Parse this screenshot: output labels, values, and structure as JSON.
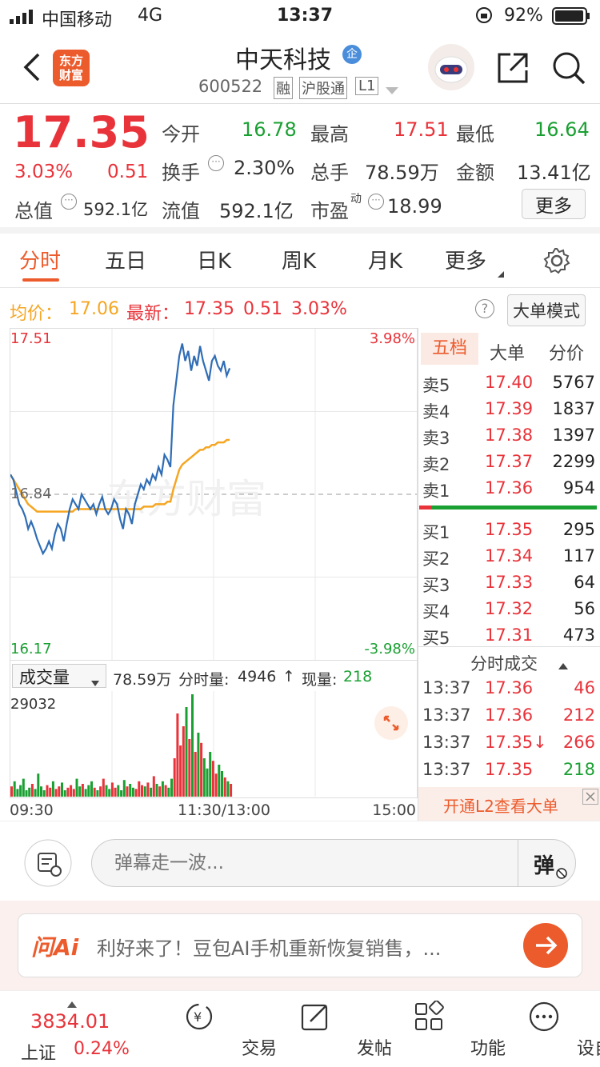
{
  "status": {
    "carrier": "中国移动",
    "network": "4G",
    "time": "13:37",
    "battery": "92%"
  },
  "header": {
    "title": "中天科技",
    "code": "600522",
    "tags": [
      "融",
      "沪股通",
      "L1"
    ],
    "logo_line1": "东方",
    "logo_line2": "财富",
    "badge": "企"
  },
  "quote": {
    "price": "17.35",
    "pct": "3.03%",
    "chg": "0.51",
    "open_label": "今开",
    "open": "16.78",
    "high_label": "最高",
    "high": "17.51",
    "low_label": "最低",
    "low": "16.64",
    "turnover_label": "换手",
    "turnover": "2.30%",
    "volume_label": "总手",
    "volume": "78.59万",
    "amount_label": "金额",
    "amount": "13.41亿",
    "mcap_label": "总值",
    "mcap": "592.1亿",
    "float_label": "流值",
    "float": "592.1亿",
    "pe_label": "市盈",
    "pe_sup": "动",
    "pe": "18.99",
    "more_label": "更多"
  },
  "tabs": [
    "分时",
    "五日",
    "日K",
    "周K",
    "月K",
    "更多"
  ],
  "pricebar": {
    "avg_label": "均价：",
    "avg": "17.06",
    "latest_label": "最新：",
    "latest": "17.35",
    "chg": "0.51",
    "pct": "3.03%",
    "mode_label": "大单模式",
    "help": "?"
  },
  "chart_data": {
    "type": "line",
    "x_labels": [
      "09:30",
      "11:30/13:00",
      "15:00"
    ],
    "ylim": [
      16.17,
      17.51
    ],
    "y_ticks": {
      "top": "17.51",
      "mid": "16.84",
      "bottom": "16.17"
    },
    "pct_ticks": {
      "top": "3.98%",
      "bottom": "-3.98%"
    },
    "watermark": "东方财富",
    "series": [
      {
        "values": [
          16.92,
          16.9,
          16.85,
          16.8,
          16.78,
          16.75,
          16.7,
          16.73,
          16.7,
          16.66,
          16.63,
          16.6,
          16.62,
          16.65,
          16.62,
          16.68,
          16.72,
          16.7,
          16.65,
          16.72,
          16.78,
          16.82,
          16.8,
          16.78,
          16.84,
          16.82,
          16.8,
          16.78,
          16.8,
          16.76,
          16.8,
          16.83,
          16.78,
          16.76,
          16.78,
          16.82,
          16.8,
          16.74,
          16.7,
          16.78,
          16.76,
          16.72,
          16.8,
          16.84,
          16.88,
          16.86,
          16.9,
          16.88,
          16.92,
          16.9,
          16.95,
          16.92,
          17.0,
          16.98,
          16.95,
          17.2,
          17.3,
          17.4,
          17.45,
          17.38,
          17.42,
          17.34,
          17.4,
          17.36,
          17.44,
          17.38,
          17.34,
          17.3,
          17.38,
          17.4,
          17.36,
          17.34,
          17.38,
          17.32,
          17.35
        ]
      },
      {
        "values": [
          16.92,
          16.9,
          16.88,
          16.86,
          16.84,
          16.82,
          16.8,
          16.79,
          16.78,
          16.77,
          16.77,
          16.77,
          16.77,
          16.77,
          16.77,
          16.77,
          16.77,
          16.77,
          16.77,
          16.77,
          16.77,
          16.77,
          16.78,
          16.78,
          16.78,
          16.78,
          16.78,
          16.78,
          16.78,
          16.78,
          16.78,
          16.78,
          16.78,
          16.78,
          16.78,
          16.78,
          16.78,
          16.78,
          16.78,
          16.78,
          16.78,
          16.78,
          16.78,
          16.78,
          16.78,
          16.79,
          16.79,
          16.79,
          16.79,
          16.8,
          16.8,
          16.8,
          16.8,
          16.81,
          16.81,
          16.86,
          16.9,
          16.94,
          16.96,
          16.97,
          16.98,
          16.99,
          17.0,
          17.01,
          17.02,
          17.02,
          17.03,
          17.03,
          17.04,
          17.04,
          17.05,
          17.05,
          17.05,
          17.06,
          17.06
        ]
      }
    ],
    "volume": {
      "max_label": "29032",
      "values": [
        8,
        12,
        6,
        9,
        14,
        5,
        7,
        10,
        6,
        18,
        8,
        5,
        9,
        7,
        12,
        6,
        8,
        11,
        5,
        7,
        9,
        6,
        14,
        8,
        10,
        6,
        9,
        12,
        7,
        5,
        8,
        14,
        9,
        6,
        11,
        7,
        9,
        5,
        13,
        8,
        10,
        7,
        6,
        12,
        9,
        8,
        11,
        7,
        16,
        10,
        8,
        12,
        9,
        7,
        14,
        30,
        65,
        40,
        55,
        70,
        45,
        80,
        35,
        50,
        42,
        30,
        22,
        35,
        28,
        18,
        25,
        20,
        15,
        12,
        10
      ]
    }
  },
  "volbar": {
    "select": "成交量",
    "total": "78.59万",
    "minute_label": "分时量:",
    "minute": "4946",
    "now_label": "现量:",
    "now": "218"
  },
  "book": {
    "tabs": [
      "五档",
      "大单",
      "分价"
    ],
    "asks": [
      {
        "label": "卖5",
        "price": "17.40",
        "vol": "5767"
      },
      {
        "label": "卖4",
        "price": "17.39",
        "vol": "1837"
      },
      {
        "label": "卖3",
        "price": "17.38",
        "vol": "1397"
      },
      {
        "label": "卖2",
        "price": "17.37",
        "vol": "2299"
      },
      {
        "label": "卖1",
        "price": "17.36",
        "vol": "954"
      }
    ],
    "bids": [
      {
        "label": "买1",
        "price": "17.35",
        "vol": "295"
      },
      {
        "label": "买2",
        "price": "17.34",
        "vol": "117"
      },
      {
        "label": "买3",
        "price": "17.33",
        "vol": "64"
      },
      {
        "label": "买4",
        "price": "17.32",
        "vol": "56"
      },
      {
        "label": "买5",
        "price": "17.31",
        "vol": "473"
      }
    ],
    "trades_title": "分时成交",
    "trades": [
      {
        "time": "13:37",
        "price": "17.36",
        "vol": "46"
      },
      {
        "time": "13:37",
        "price": "17.36",
        "vol": "212"
      },
      {
        "time": "13:37",
        "price": "17.35↓",
        "vol": "266"
      },
      {
        "time": "13:37",
        "price": "17.35",
        "vol": "218"
      }
    ],
    "l2_label": "开通L2查看大单"
  },
  "danmu": {
    "placeholder": "弹幕走一波...",
    "send": "弹"
  },
  "ai": {
    "brand": "问Ai",
    "text": "利好来了！豆包AI手机重新恢复销售，..."
  },
  "tabbar": {
    "index_value": "3834.01",
    "index_name": "上证",
    "index_pct": "0.24%",
    "items": [
      "交易",
      "发帖",
      "功能",
      "设自选"
    ]
  },
  "colors": {
    "red": "#e8333a",
    "green": "#1aa032",
    "blue": "#2f6db5",
    "orange": "#f5a623",
    "accent": "#ec5b2c"
  }
}
